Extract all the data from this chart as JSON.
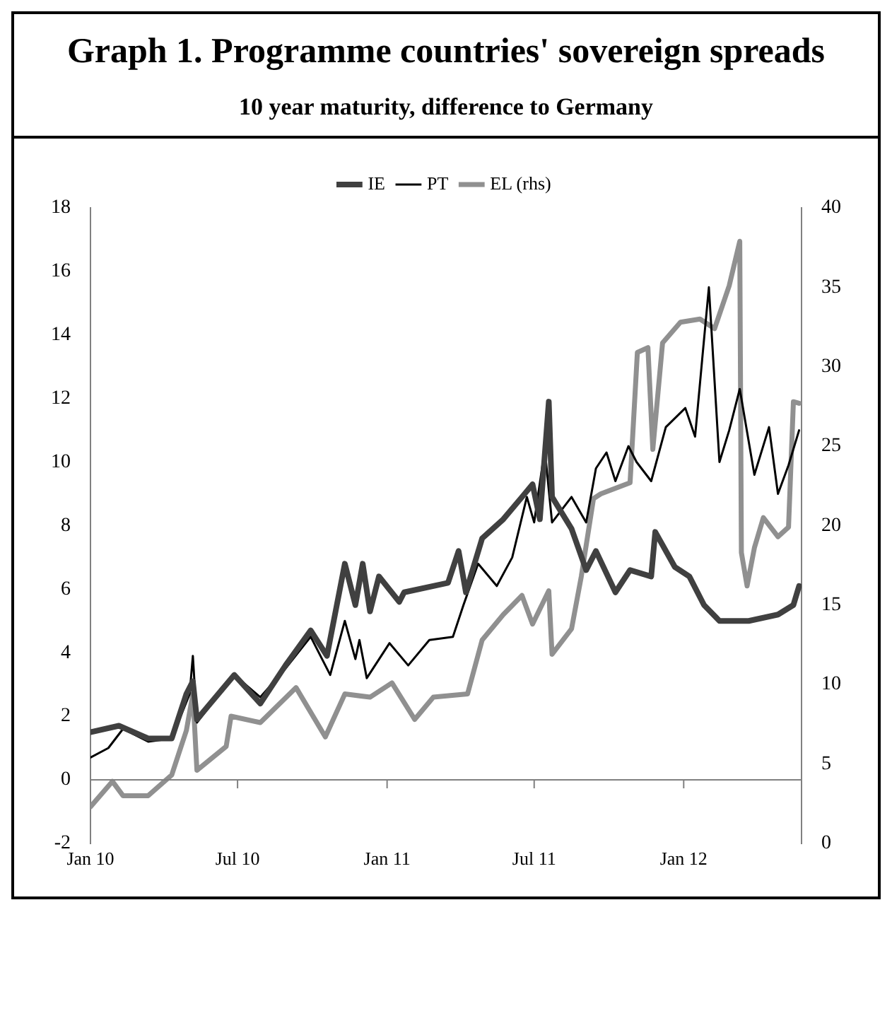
{
  "chart_data": {
    "type": "line",
    "title": "Graph 1. Programme countries' sovereign spreads",
    "subtitle": "10 year maturity, difference to Germany",
    "legend": "top",
    "marker": "none",
    "line_style": "solid",
    "xlim": [
      "2010-01-01",
      "2012-05-25"
    ],
    "xticks": [
      {
        "value": "2010-01-01",
        "label": "Jan 10"
      },
      {
        "value": "2010-07-01",
        "label": "Jul 10"
      },
      {
        "value": "2011-01-01",
        "label": "Jan 11"
      },
      {
        "value": "2011-07-01",
        "label": "Jul 11"
      },
      {
        "value": "2012-01-01",
        "label": "Jan 12"
      }
    ],
    "ylim": [
      -2,
      18
    ],
    "yticks": [
      -2,
      0,
      2,
      4,
      6,
      8,
      10,
      12,
      14,
      16,
      18
    ],
    "y2lim": [
      0,
      40
    ],
    "y2ticks": [
      0,
      5,
      10,
      15,
      20,
      25,
      30,
      35,
      40
    ],
    "series": [
      {
        "name": "IE",
        "color": "#404040",
        "x": [
          "2010-01-01",
          "2010-02-05",
          "2010-03-13",
          "2010-04-11",
          "2010-04-29",
          "2010-05-07",
          "2010-05-12",
          "2010-06-27",
          "2010-07-29",
          "2010-08-29",
          "2010-09-29",
          "2010-10-19",
          "2010-11-10",
          "2010-11-23",
          "2010-12-02",
          "2010-12-11",
          "2010-12-22",
          "2011-01-16",
          "2011-01-22",
          "2011-03-17",
          "2011-03-30",
          "2011-04-08",
          "2011-04-28",
          "2011-05-24",
          "2011-06-16",
          "2011-06-29",
          "2011-07-08",
          "2011-07-19",
          "2011-07-23",
          "2011-08-16",
          "2011-09-03",
          "2011-09-15",
          "2011-10-09",
          "2011-10-27",
          "2011-11-22",
          "2011-11-27",
          "2011-12-21",
          "2012-01-08",
          "2012-01-26",
          "2012-02-14",
          "2012-03-21",
          "2012-04-26",
          "2012-05-15",
          "2012-05-22"
        ],
        "values": [
          1.5,
          1.7,
          1.3,
          1.3,
          2.7,
          3.1,
          1.9,
          3.3,
          2.4,
          3.6,
          4.7,
          3.9,
          6.8,
          5.5,
          6.8,
          5.3,
          6.4,
          5.6,
          5.9,
          6.2,
          7.2,
          5.9,
          7.6,
          8.2,
          8.9,
          9.3,
          8.2,
          11.9,
          8.9,
          7.9,
          6.6,
          7.2,
          5.9,
          6.6,
          6.4,
          7.8,
          6.7,
          6.4,
          5.5,
          5.0,
          5.0,
          5.2,
          5.5,
          6.1
        ]
      },
      {
        "name": "PT",
        "color": "#000000",
        "x": [
          "2010-01-01",
          "2010-01-23",
          "2010-02-10",
          "2010-03-13",
          "2010-04-11",
          "2010-05-03",
          "2010-05-07",
          "2010-05-12",
          "2010-06-27",
          "2010-07-29",
          "2010-08-29",
          "2010-09-29",
          "2010-10-23",
          "2010-11-10",
          "2010-11-23",
          "2010-11-28",
          "2010-12-07",
          "2011-01-04",
          "2011-01-27",
          "2011-02-22",
          "2011-03-23",
          "2011-04-05",
          "2011-04-23",
          "2011-05-16",
          "2011-06-04",
          "2011-06-22",
          "2011-07-01",
          "2011-07-14",
          "2011-07-23",
          "2011-08-16",
          "2011-09-03",
          "2011-09-15",
          "2011-09-28",
          "2011-10-09",
          "2011-10-25",
          "2011-11-04",
          "2011-11-22",
          "2011-12-10",
          "2012-01-03",
          "2012-01-15",
          "2012-01-24",
          "2012-02-01",
          "2012-02-14",
          "2012-02-26",
          "2012-03-10",
          "2012-03-28",
          "2012-04-15",
          "2012-04-26",
          "2012-05-09",
          "2012-05-22"
        ],
        "values": [
          0.7,
          1.0,
          1.6,
          1.2,
          1.3,
          2.7,
          3.9,
          1.8,
          3.3,
          2.6,
          3.5,
          4.5,
          3.3,
          5.0,
          3.8,
          4.4,
          3.2,
          4.3,
          3.6,
          4.4,
          4.5,
          5.5,
          6.8,
          6.1,
          7.0,
          8.9,
          8.1,
          10.4,
          8.1,
          8.9,
          8.1,
          9.8,
          10.3,
          9.4,
          10.5,
          10.0,
          9.4,
          11.1,
          11.7,
          10.8,
          13.3,
          15.5,
          10.0,
          11.0,
          12.3,
          9.6,
          11.1,
          9.0,
          9.9,
          11.0
        ]
      },
      {
        "name": "EL (rhs)",
        "color": "#909090",
        "axis": "y2",
        "x": [
          "2010-01-01",
          "2010-01-28",
          "2010-02-10",
          "2010-03-13",
          "2010-04-11",
          "2010-04-29",
          "2010-05-07",
          "2010-05-12",
          "2010-06-17",
          "2010-06-23",
          "2010-07-29",
          "2010-09-11",
          "2010-10-17",
          "2010-11-10",
          "2010-12-11",
          "2011-01-07",
          "2011-02-04",
          "2011-02-27",
          "2011-04-10",
          "2011-04-28",
          "2011-05-24",
          "2011-06-16",
          "2011-06-29",
          "2011-07-19",
          "2011-07-23",
          "2011-08-16",
          "2011-08-28",
          "2011-09-12",
          "2011-09-21",
          "2011-10-27",
          "2011-11-05",
          "2011-11-18",
          "2011-11-24",
          "2011-12-06",
          "2011-12-28",
          "2012-01-21",
          "2012-02-08",
          "2012-02-26",
          "2012-03-10",
          "2012-03-12",
          "2012-03-19",
          "2012-03-28",
          "2012-04-08",
          "2012-04-26",
          "2012-05-09",
          "2012-05-15",
          "2012-05-22"
        ],
        "values": [
          2.3,
          3.9,
          3.0,
          3.0,
          4.3,
          7.1,
          9.4,
          4.6,
          6.1,
          8.0,
          7.6,
          9.8,
          6.7,
          9.4,
          9.2,
          10.1,
          7.8,
          9.2,
          9.4,
          12.8,
          14.4,
          15.6,
          13.8,
          15.9,
          11.9,
          13.5,
          16.8,
          21.7,
          22.0,
          22.7,
          30.9,
          31.2,
          24.8,
          31.5,
          32.8,
          33.0,
          32.4,
          35.1,
          37.9,
          18.3,
          16.2,
          18.6,
          20.5,
          19.3,
          19.9,
          27.8,
          27.7
        ]
      }
    ]
  }
}
